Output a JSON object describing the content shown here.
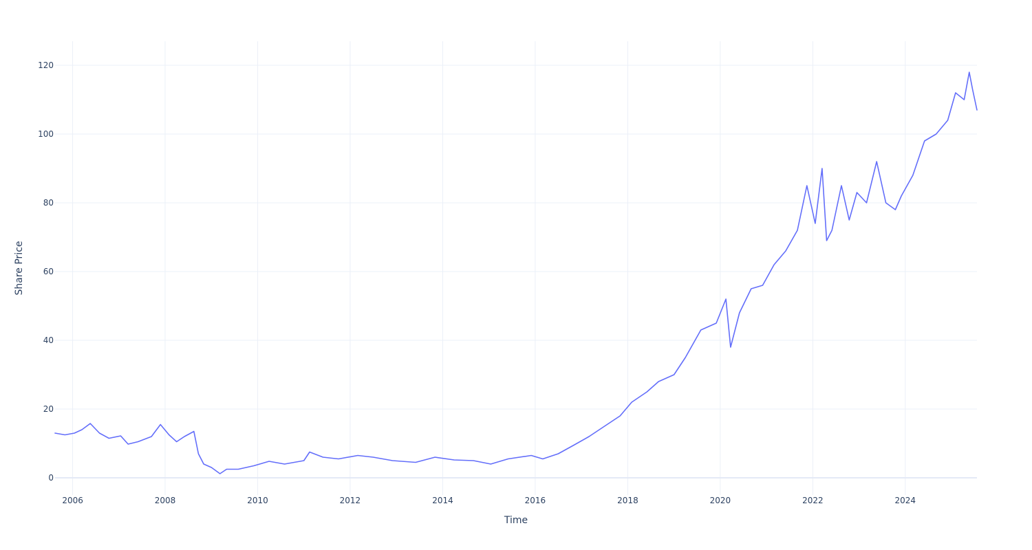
{
  "chart_data": {
    "type": "line",
    "title": "",
    "xlabel": "Time",
    "ylabel": "Share Price",
    "xlim": [
      "2005-08-15",
      "2025-07-20"
    ],
    "ylim": [
      -5,
      127
    ],
    "x_ticks": [
      "2006",
      "2008",
      "2010",
      "2012",
      "2014",
      "2016",
      "2018",
      "2020",
      "2022",
      "2024"
    ],
    "y_ticks": [
      0,
      20,
      40,
      60,
      80,
      100,
      120
    ],
    "grid": true,
    "legend": "none",
    "series": [
      {
        "color": "#636efa",
        "x": [
          "2005-08-15",
          "2005-11-01",
          "2006-01-15",
          "2006-03-15",
          "2006-05-20",
          "2006-08-01",
          "2006-10-15",
          "2007-01-15",
          "2007-03-15",
          "2007-06-01",
          "2007-09-15",
          "2007-11-25",
          "2008-02-01",
          "2008-04-01",
          "2008-06-01",
          "2008-08-15",
          "2008-09-20",
          "2008-11-01",
          "2009-01-01",
          "2009-03-09",
          "2009-05-01",
          "2009-08-01",
          "2009-12-01",
          "2010-04-01",
          "2010-08-01",
          "2011-01-01",
          "2011-02-15",
          "2011-06-01",
          "2011-10-01",
          "2012-03-01",
          "2012-07-01",
          "2012-12-01",
          "2013-06-01",
          "2013-11-01",
          "2014-04-01",
          "2014-09-01",
          "2015-01-15",
          "2015-06-01",
          "2015-12-01",
          "2016-03-01",
          "2016-07-01",
          "2016-11-01",
          "2017-03-01",
          "2017-07-01",
          "2017-11-01",
          "2018-02-01",
          "2018-06-01",
          "2018-09-01",
          "2019-01-01",
          "2019-04-01",
          "2019-08-01",
          "2019-12-01",
          "2020-02-15",
          "2020-03-23",
          "2020-06-01",
          "2020-09-01",
          "2020-12-01",
          "2021-03-01",
          "2021-06-01",
          "2021-09-01",
          "2021-11-15",
          "2022-01-20",
          "2022-03-15",
          "2022-04-20",
          "2022-06-01",
          "2022-08-15",
          "2022-10-15",
          "2022-12-15",
          "2023-03-01",
          "2023-05-20",
          "2023-08-01",
          "2023-10-15",
          "2023-12-01",
          "2024-03-01",
          "2024-06-01",
          "2024-09-01",
          "2024-12-01",
          "2025-02-01",
          "2025-04-10",
          "2025-05-20",
          "2025-06-15",
          "2025-07-20"
        ],
        "y": [
          13,
          12.5,
          13,
          14,
          15.8,
          13,
          11.5,
          12.2,
          9.8,
          10.5,
          12,
          15.5,
          12.5,
          10.5,
          12,
          13.5,
          7,
          4,
          3,
          1.2,
          2.5,
          2.5,
          3.5,
          4.8,
          4,
          5,
          7.5,
          6,
          5.5,
          6.5,
          6,
          5,
          4.5,
          6,
          5.2,
          5,
          4,
          5.5,
          6.5,
          5.5,
          7,
          9.5,
          12,
          15,
          18,
          22,
          25,
          28,
          30,
          35,
          43,
          45,
          52,
          38,
          48,
          55,
          56,
          62,
          66,
          72,
          85,
          74,
          90,
          69,
          72,
          85,
          75,
          83,
          80,
          92,
          80,
          78,
          82,
          88,
          98,
          100,
          104,
          112,
          110,
          118,
          113,
          107
        ]
      }
    ]
  }
}
